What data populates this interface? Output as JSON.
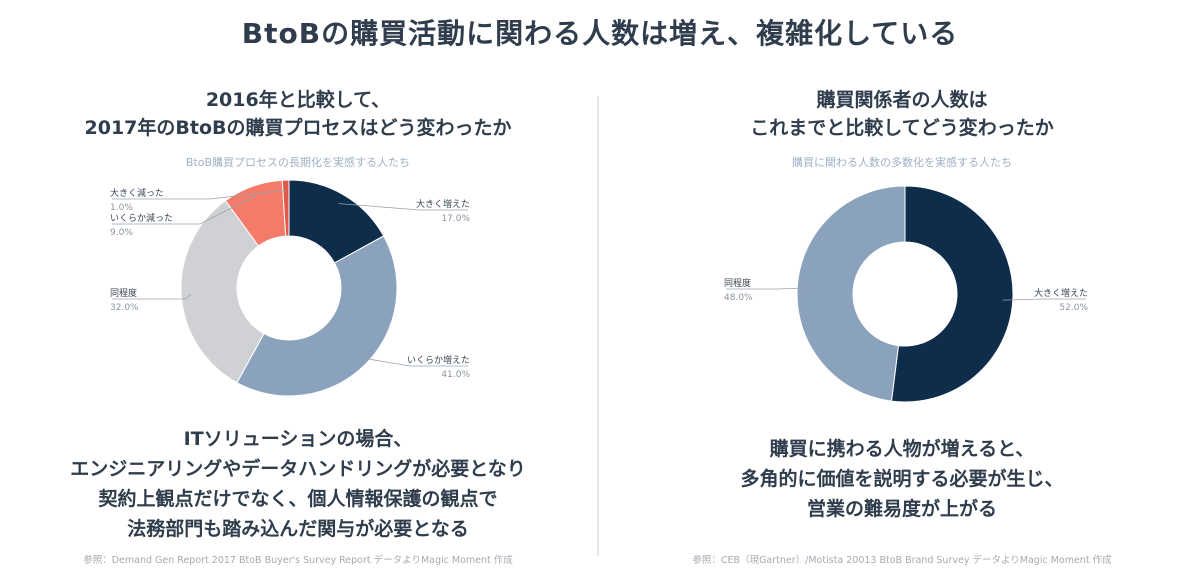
{
  "title": "BtoBの購買活動に関わる人数は増え、複雑化している",
  "left": {
    "heading_line1": "2016年と比較して、",
    "heading_line2": "2017年のBtoBの購買プロセスはどう変わったか",
    "caption": "BtoB購買プロセスの長期化を実感する人たち",
    "conclusion_line1": "ITソリューションの場合、",
    "conclusion_line2": "エンジニアリングやデータハンドリングが必要となり",
    "conclusion_line3": "契約上観点だけでなく、個人情報保護の観点で",
    "conclusion_line4": "法務部門も踏み込んだ関与が必要となる",
    "source": "参照：Demand Gen Report 2017 BtoB Buyer's Survey Report データよりMagic Moment 作成"
  },
  "right": {
    "heading_line1": "購買関係者の人数は",
    "heading_line2": "これまでと比較してどう変わったか",
    "caption": "購買に関わる人数の多数化を実感する人たち",
    "conclusion_line1": "購買に携わる人物が増えると、",
    "conclusion_line2": "多角的に価値を説明する必要が生じ、",
    "conclusion_line3": "営業の難易度が上がる",
    "source": "参照：CEB（現Gartner）/Motista 20013 BtoB Brand Survey データよりMagic Moment 作成"
  },
  "chart_data": [
    {
      "type": "pie",
      "donut": true,
      "slices": [
        {
          "label": "大きく増えた",
          "value": 17.0,
          "display": "17.0%",
          "color": "#0e2d4a"
        },
        {
          "label": "いくらか増えた",
          "value": 41.0,
          "display": "41.0%",
          "color": "#8aa2bc"
        },
        {
          "label": "同程度",
          "value": 32.0,
          "display": "32.0%",
          "color": "#cfd1d4"
        },
        {
          "label": "いくらか減った",
          "value": 9.0,
          "display": "9.0%",
          "color": "#f47a6a"
        },
        {
          "label": "大きく減った",
          "value": 1.0,
          "display": "1.0%",
          "color": "#e2584a"
        }
      ]
    },
    {
      "type": "pie",
      "donut": true,
      "slices": [
        {
          "label": "大きく増えた",
          "value": 52.0,
          "display": "52.0%",
          "color": "#0e2d4a"
        },
        {
          "label": "同程度",
          "value": 48.0,
          "display": "48.0%",
          "color": "#8aa2bc"
        }
      ]
    }
  ]
}
